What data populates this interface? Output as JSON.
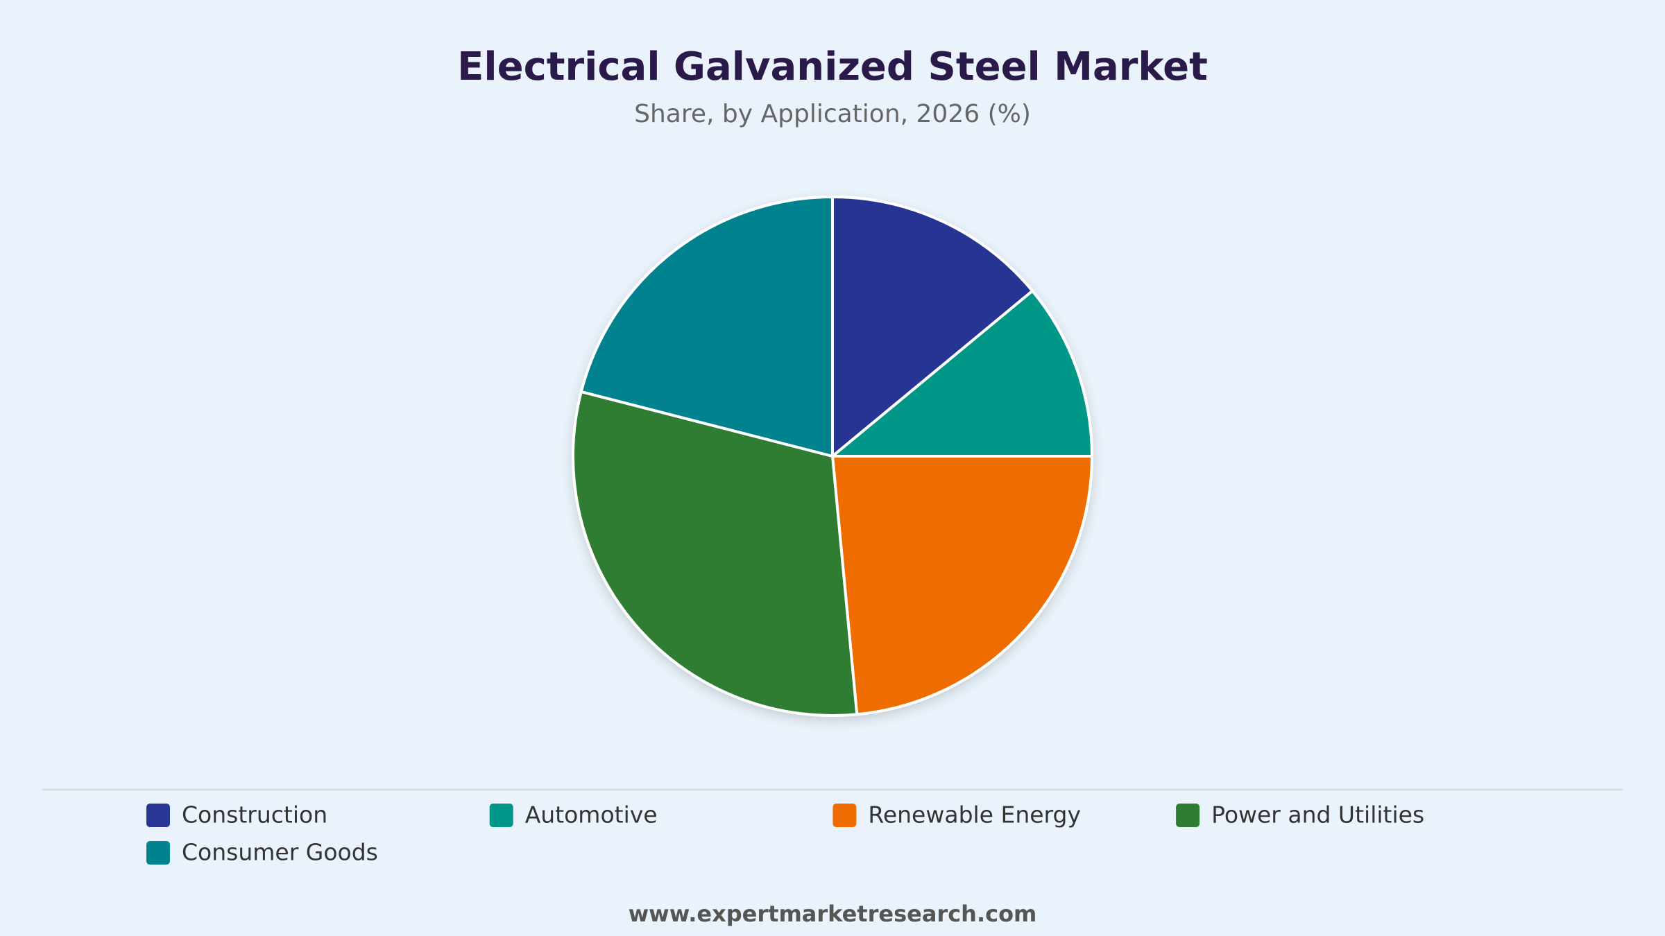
{
  "chart_data": {
    "type": "pie",
    "title": "Electrical Galvanized Steel Market",
    "subtitle": "Share, by Application, 2026 (%)",
    "categories": [
      "Construction",
      "Automotive",
      "Renewable Energy",
      "Power and Utilities",
      "Consumer Goods"
    ],
    "values": [
      14,
      11,
      23.5,
      30.5,
      21
    ],
    "colors": [
      "#283593",
      "#009688",
      "#ef6c00",
      "#2e7d32",
      "#00838f"
    ],
    "source": "www.expertmarketresearch.com"
  }
}
